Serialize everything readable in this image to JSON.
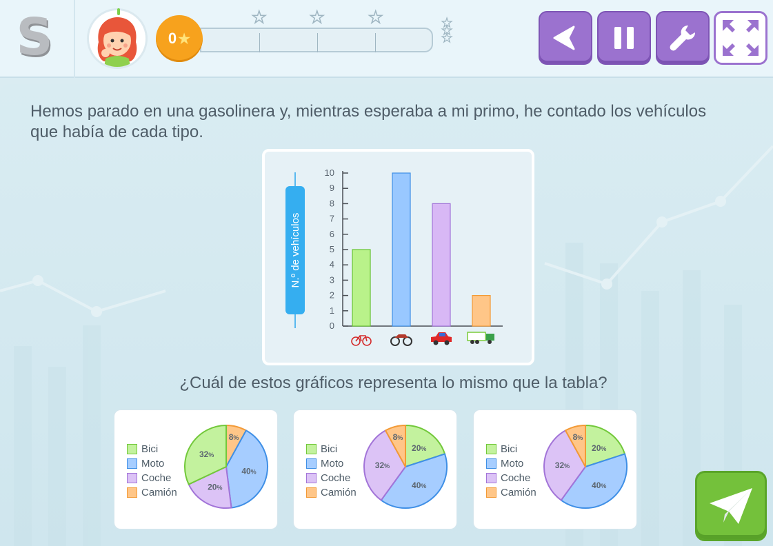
{
  "header": {
    "logo": "S",
    "score": "0",
    "score_icon": "star-icon",
    "buttons": [
      {
        "name": "back-button",
        "icon": "back-arrow-icon"
      },
      {
        "name": "pause-button",
        "icon": "pause-icon"
      },
      {
        "name": "settings-button",
        "icon": "wrench-icon"
      },
      {
        "name": "fullscreen-button",
        "icon": "expand-icon"
      }
    ]
  },
  "content": {
    "question": "Hemos parado en una gasolinera y, mientras esperaba a mi primo, he contado los vehículos que había de cada tipo.",
    "subquestion": "¿Cuál de estos gráficos representa lo mismo que la tabla?"
  },
  "chart_data": [
    {
      "type": "bar",
      "ylabel": "N.º de vehículos",
      "categories": [
        "bicycle-icon",
        "motorcycle-icon",
        "car-icon",
        "truck-icon"
      ],
      "values": [
        5,
        10,
        8,
        2
      ],
      "ylim": [
        0,
        10
      ],
      "yticks": [
        "0",
        "1",
        "2",
        "3",
        "4",
        "5",
        "6",
        "7",
        "8",
        "9",
        "10"
      ],
      "colors": [
        "#b9f28a",
        "#99c8ff",
        "#d8b8f5",
        "#ffc688"
      ],
      "strokes": [
        "#66c233",
        "#3f8fe6",
        "#a274d8",
        "#f39a36"
      ]
    },
    {
      "type": "pie",
      "legend": [
        "Bici",
        "Moto",
        "Coche",
        "Camión"
      ],
      "slices": [
        {
          "label": "Camión",
          "value": 8
        },
        {
          "label": "Moto",
          "value": 40
        },
        {
          "label": "Coche",
          "value": 20
        },
        {
          "label": "Bici",
          "value": 32
        }
      ],
      "labels": [
        "8%",
        "40%",
        "20%",
        "32%"
      ]
    },
    {
      "type": "pie",
      "legend": [
        "Bici",
        "Moto",
        "Coche",
        "Camión"
      ],
      "slices": [
        {
          "label": "Bici",
          "value": 20
        },
        {
          "label": "Moto",
          "value": 40
        },
        {
          "label": "Coche",
          "value": 32
        },
        {
          "label": "Camión",
          "value": 8
        }
      ],
      "labels": [
        "20%",
        "40%",
        "32%",
        "8%"
      ]
    },
    {
      "type": "pie",
      "legend": [
        "Bici",
        "Moto",
        "Coche",
        "Camión"
      ],
      "slices": [
        {
          "label": "Bici",
          "value": 20
        },
        {
          "label": "Moto",
          "value": 40
        },
        {
          "label": "Coche",
          "value": 32
        },
        {
          "label": "Camión",
          "value": 8
        }
      ],
      "labels": [
        "20%",
        "40%",
        "32%",
        "8%"
      ]
    }
  ],
  "colors": {
    "Bici": {
      "fill": "#c3f29e",
      "stroke": "#72c83a"
    },
    "Moto": {
      "fill": "#a6cdff",
      "stroke": "#3f8fe6"
    },
    "Coche": {
      "fill": "#dcc3f6",
      "stroke": "#a274d8"
    },
    "Camión": {
      "fill": "#ffc688",
      "stroke": "#f39a36"
    }
  },
  "send_button": {
    "icon": "paper-plane-icon"
  }
}
